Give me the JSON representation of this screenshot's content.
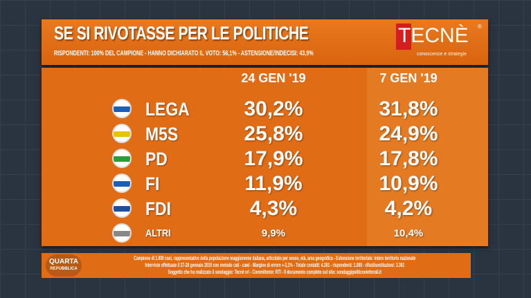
{
  "header": {
    "title": "SE SI RIVOTASSE PER LE POLITICHE",
    "subtitle": "RISPONDENTI: 100% DEL CAMPIONE - HANNO DICHIARATO IL VOTO: 56,1% - ASTENSIONE/INDECISI: 43,9%",
    "logo": "TECNÈ",
    "logo_tagline": "conoscenze e strategie"
  },
  "chart_data": {
    "type": "table",
    "title": "SE SI RIVOTASSE PER LE POLITICHE",
    "columns": [
      "24 GEN '19",
      "7 GEN '19"
    ],
    "rows": [
      {
        "party": "LEGA",
        "values": [
          "30,2%",
          "31,8%"
        ]
      },
      {
        "party": "M5S",
        "values": [
          "25,8%",
          "24,9%"
        ]
      },
      {
        "party": "PD",
        "values": [
          "17,9%",
          "17,8%"
        ]
      },
      {
        "party": "FI",
        "values": [
          "11,9%",
          "10,9%"
        ]
      },
      {
        "party": "FDI",
        "values": [
          "4,3%",
          "4,2%"
        ]
      },
      {
        "party": "ALTRI",
        "values": [
          "9,9%",
          "10,4%"
        ]
      }
    ]
  },
  "footer": {
    "show_logo": "QUARTA",
    "show_logo_sub": "REPUBBLICA",
    "lines": [
      "Campione di 1.000 casi, rappresentativo della popolazione maggiorenne italiana, articolato per sesso, età, area geografica - Estensione territoriale: intero territorio nazionale",
      "Interviste effettuate il 27-28 gennaio 2019 con metodo cati - cawi - Margine di errore +-3,1% - Totale contatti: 4.361 - rispondenti: 1.000 - rifiuti/sostituzioni: 3.361",
      "Soggetto che ha realizzato il sondaggio: Tecnè srl - Committente: RTI - Il documento completo sul sito: sondaggipoliticoelettorali.it"
    ]
  }
}
